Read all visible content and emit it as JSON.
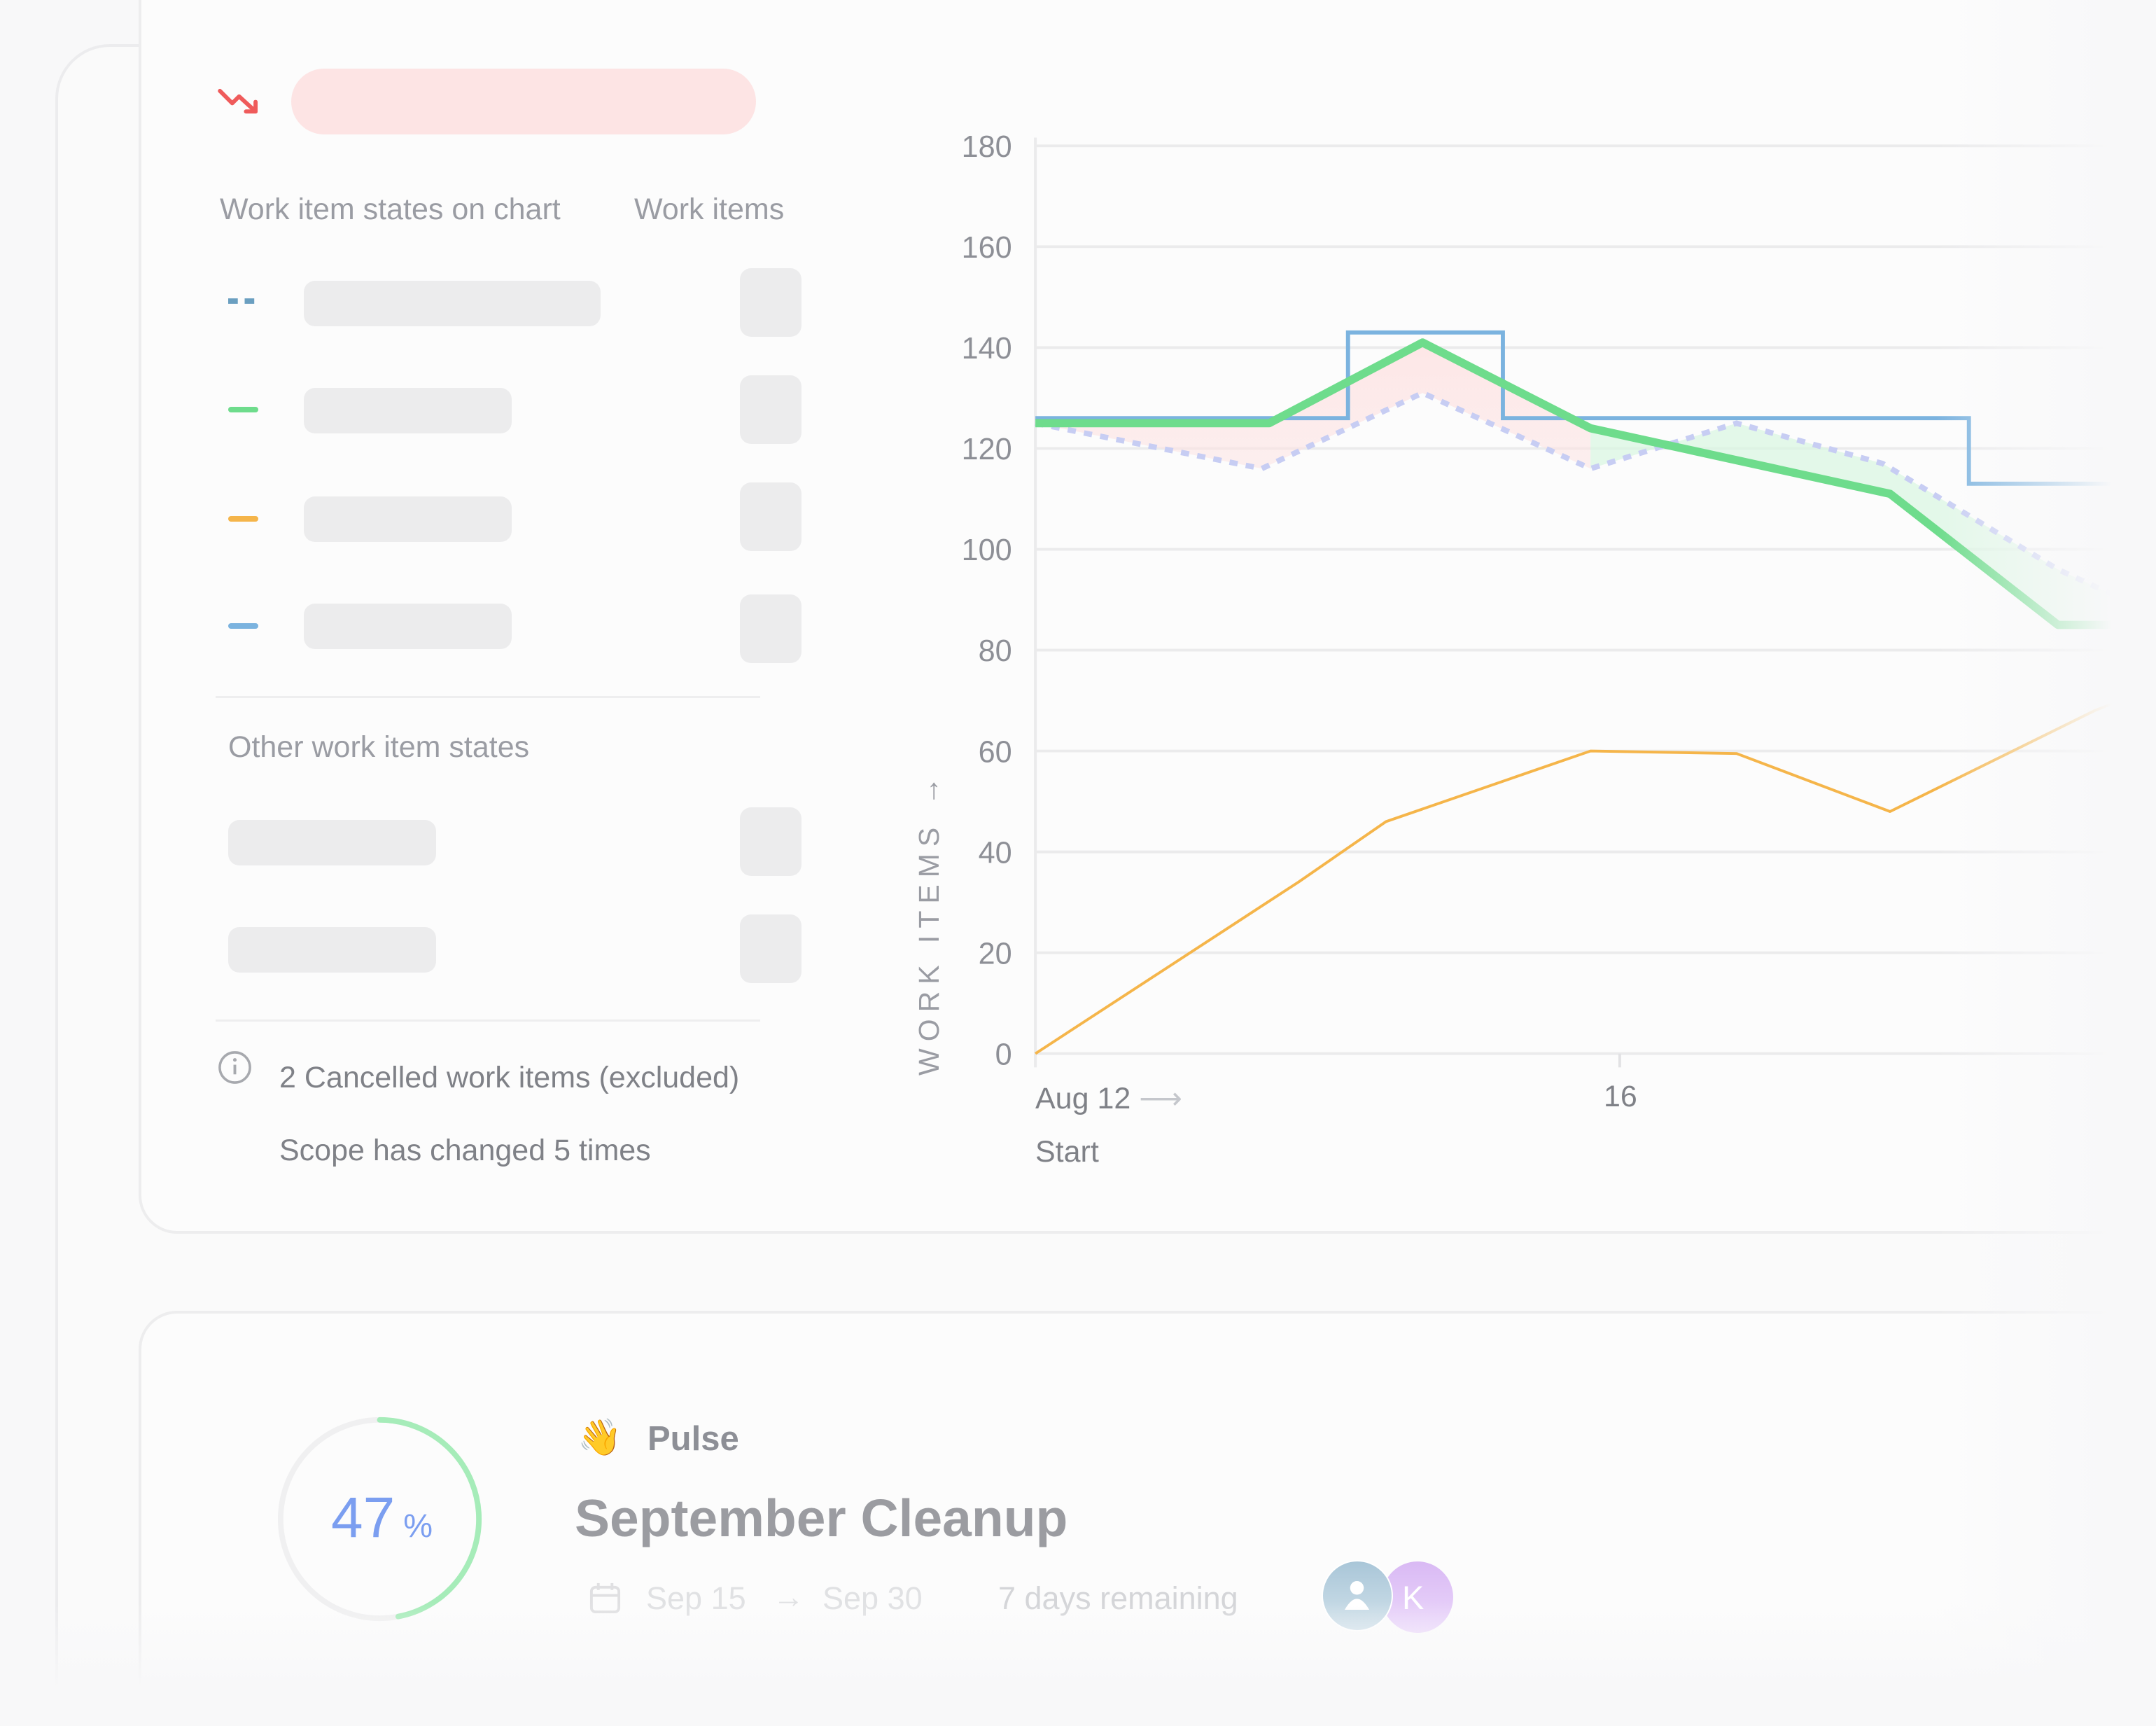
{
  "panel": {
    "header_col1": "Work item states on chart",
    "header_col2": "Work items",
    "other_header": "Other work item states",
    "cancelled_note": "2 Cancelled work items (excluded)",
    "scope_note": "Scope has changed 5 times",
    "legend_colors": [
      "#6a9fc0",
      "#6edc8c",
      "#f5b54a",
      "#7bb3df"
    ],
    "trend_icon": "trend-down-icon",
    "info_icon": "info-icon"
  },
  "chart_data": {
    "type": "line",
    "ylabel": "WORK ITEMS",
    "y_ticks": [
      "0",
      "20",
      "40",
      "60",
      "80",
      "100",
      "120",
      "140",
      "160",
      "180"
    ],
    "ylim": [
      0,
      180
    ],
    "x_ticks": [
      {
        "day": 12,
        "label": "Aug 12"
      },
      {
        "day": 16,
        "label": "16"
      }
    ],
    "x_start_label": "Start",
    "x_unit": "day of August",
    "grid": true,
    "series": [
      {
        "style": "step",
        "color": "#7bb3df",
        "x": [
          12,
          14.14,
          15.2,
          18.39,
          19.45,
          20
        ],
        "y": [
          126,
          143,
          126,
          113,
          126,
          126
        ]
      },
      {
        "style": "dotted",
        "color": "#c7cdf3",
        "x": [
          12,
          13.55,
          14.65,
          15.8,
          16.8,
          17.8,
          19.0,
          19.6
        ],
        "y": [
          125,
          116,
          131,
          116,
          125,
          117,
          96,
          88
        ]
      },
      {
        "style": "thick",
        "color": "#6edc8c",
        "x": [
          12,
          13.6,
          14.65,
          15.8,
          17.85,
          19.0,
          19.6
        ],
        "y": [
          125,
          125,
          141,
          124,
          111,
          85,
          85
        ]
      },
      {
        "style": "thin",
        "color": "#f5b54a",
        "x": [
          12,
          13.8,
          14.4,
          15.8,
          16.8,
          17.85,
          19.25,
          19.6
        ],
        "y": [
          0,
          34,
          46,
          60,
          59.5,
          48,
          68,
          72
        ]
      }
    ]
  },
  "pulse": {
    "progress_percent": 47,
    "progress_value": "47",
    "percent_sign": "%",
    "emoji": "👋",
    "label": "Pulse",
    "title": "September Cleanup",
    "start_date": "Sep 15",
    "arrow": "→",
    "end_date": "Sep 30",
    "remaining": "7 days remaining",
    "avatar_initial": "K",
    "ring_color": "#7fe09a",
    "number_color": "#7b9ef0"
  }
}
